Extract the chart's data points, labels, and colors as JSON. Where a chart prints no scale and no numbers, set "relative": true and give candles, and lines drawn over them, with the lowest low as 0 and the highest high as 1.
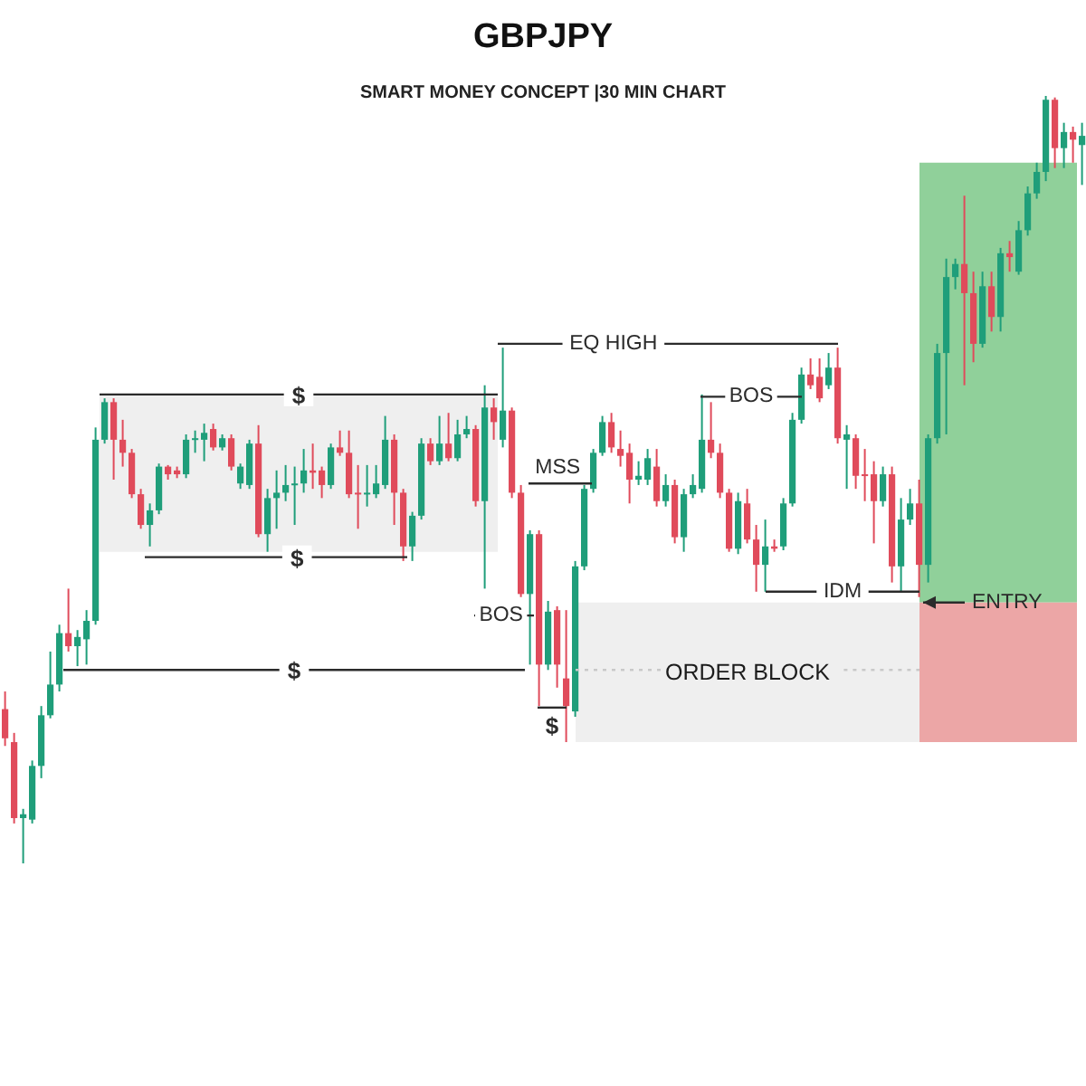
{
  "chart_data": {
    "type": "candlestick",
    "title": "GBPJPY",
    "subtitle": "SMART MONEY CONCEPT |30 MIN CHART",
    "relative": true,
    "categories": [
      null,
      null,
      null,
      null,
      null,
      null,
      null,
      null,
      null,
      null,
      null,
      null,
      null,
      null,
      null,
      null,
      null,
      null,
      null,
      null,
      null,
      null,
      null,
      null,
      null,
      null,
      null,
      null,
      null,
      null,
      null,
      null,
      null,
      null,
      null,
      null,
      null,
      null,
      null,
      null,
      null,
      null,
      null,
      null,
      null,
      null,
      null,
      null,
      null,
      null,
      null,
      null,
      null,
      null,
      null,
      null,
      null,
      null,
      null,
      null,
      null,
      null,
      null,
      null,
      null,
      null,
      null,
      null,
      null,
      null,
      null,
      null,
      null,
      null,
      null,
      null,
      null,
      null,
      null,
      null,
      null,
      null,
      null,
      null,
      null,
      null,
      null,
      null,
      null,
      null,
      null,
      null,
      null,
      null,
      null,
      null,
      null,
      null,
      null,
      null,
      null,
      null,
      null,
      null,
      null,
      null,
      null,
      null,
      null,
      null,
      null,
      null,
      null,
      null,
      null,
      null,
      null,
      null,
      null,
      null
    ],
    "ohlc": [
      [
        0.201,
        0.224,
        0.153,
        0.163
      ],
      [
        0.158,
        0.17,
        0.052,
        0.059
      ],
      [
        0.059,
        0.071,
        0,
        0.064
      ],
      [
        0.057,
        0.134,
        0.052,
        0.127
      ],
      [
        0.127,
        0.205,
        0.111,
        0.193
      ],
      [
        0.193,
        0.276,
        0.189,
        0.233
      ],
      [
        0.233,
        0.311,
        0.224,
        0.3
      ],
      [
        0.3,
        0.358,
        0.276,
        0.283
      ],
      [
        0.283,
        0.304,
        0.257,
        0.295
      ],
      [
        0.292,
        0.33,
        0.259,
        0.316
      ],
      [
        0.316,
        0.568,
        0.311,
        0.552
      ],
      [
        0.552,
        0.606,
        0.547,
        0.601
      ],
      [
        0.601,
        0.606,
        0.5,
        0.552
      ],
      [
        0.552,
        0.578,
        0.517,
        0.535
      ],
      [
        0.535,
        0.54,
        0.476,
        0.481
      ],
      [
        0.481,
        0.488,
        0.436,
        0.441
      ],
      [
        0.441,
        0.469,
        0.413,
        0.46
      ],
      [
        0.46,
        0.521,
        0.455,
        0.517
      ],
      [
        0.517,
        0.519,
        0.5,
        0.507
      ],
      [
        0.512,
        0.517,
        0.502,
        0.507
      ],
      [
        0.507,
        0.559,
        0.502,
        0.552
      ],
      [
        0.552,
        0.564,
        0.535,
        0.554
      ],
      [
        0.552,
        0.573,
        0.524,
        0.561
      ],
      [
        0.566,
        0.573,
        0.538,
        0.542
      ],
      [
        0.542,
        0.559,
        0.538,
        0.554
      ],
      [
        0.554,
        0.559,
        0.512,
        0.517
      ],
      [
        0.495,
        0.521,
        0.488,
        0.517
      ],
      [
        0.493,
        0.552,
        0.488,
        0.547
      ],
      [
        0.547,
        0.571,
        0.425,
        0.429
      ],
      [
        0.429,
        0.488,
        0.406,
        0.476
      ],
      [
        0.476,
        0.512,
        0.436,
        0.483
      ],
      [
        0.483,
        0.519,
        0.472,
        0.493
      ],
      [
        0.493,
        0.517,
        0.441,
        0.495
      ],
      [
        0.495,
        0.54,
        0.483,
        0.512
      ],
      [
        0.512,
        0.547,
        0.488,
        0.509
      ],
      [
        0.512,
        0.517,
        0.476,
        0.493
      ],
      [
        0.493,
        0.547,
        0.488,
        0.542
      ],
      [
        0.542,
        0.564,
        0.531,
        0.535
      ],
      [
        0.535,
        0.564,
        0.476,
        0.481
      ],
      [
        0.483,
        0.519,
        0.436,
        0.481
      ],
      [
        0.481,
        0.519,
        0.465,
        0.483
      ],
      [
        0.481,
        0.519,
        0.476,
        0.495
      ],
      [
        0.493,
        0.583,
        0.488,
        0.552
      ],
      [
        0.552,
        0.559,
        0.441,
        0.483
      ],
      [
        0.483,
        0.488,
        0.394,
        0.413
      ],
      [
        0.413,
        0.458,
        0.394,
        0.453
      ],
      [
        0.453,
        0.554,
        0.448,
        0.547
      ],
      [
        0.547,
        0.554,
        0.519,
        0.524
      ],
      [
        0.524,
        0.583,
        0.519,
        0.547
      ],
      [
        0.547,
        0.587,
        0.524,
        0.528
      ],
      [
        0.528,
        0.578,
        0.524,
        0.559
      ],
      [
        0.559,
        0.583,
        0.554,
        0.566
      ],
      [
        0.566,
        0.571,
        0.465,
        0.472
      ],
      [
        0.472,
        0.623,
        0.358,
        0.594
      ],
      [
        0.594,
        0.606,
        0.552,
        0.575
      ],
      [
        0.552,
        0.672,
        0.542,
        0.59
      ],
      [
        0.59,
        0.594,
        0.476,
        0.483
      ],
      [
        0.483,
        0.493,
        0.347,
        0.351
      ],
      [
        0.351,
        0.434,
        0.259,
        0.429
      ],
      [
        0.429,
        0.434,
        0.205,
        0.259
      ],
      [
        0.259,
        0.342,
        0.252,
        0.328
      ],
      [
        0.33,
        0.335,
        0.229,
        0.259
      ],
      [
        0.241,
        0.33,
        0.158,
        0.205
      ],
      [
        0.198,
        0.394,
        0.191,
        0.387
      ],
      [
        0.387,
        0.493,
        0.382,
        0.488
      ],
      [
        0.488,
        0.54,
        0.483,
        0.535
      ],
      [
        0.535,
        0.583,
        0.531,
        0.575
      ],
      [
        0.575,
        0.587,
        0.535,
        0.542
      ],
      [
        0.54,
        0.564,
        0.517,
        0.531
      ],
      [
        0.535,
        0.547,
        0.469,
        0.5
      ],
      [
        0.5,
        0.524,
        0.493,
        0.505
      ],
      [
        0.5,
        0.54,
        0.493,
        0.528
      ],
      [
        0.517,
        0.54,
        0.465,
        0.472
      ],
      [
        0.472,
        0.507,
        0.465,
        0.493
      ],
      [
        0.493,
        0.5,
        0.417,
        0.425
      ],
      [
        0.425,
        0.488,
        0.406,
        0.481
      ],
      [
        0.481,
        0.507,
        0.476,
        0.493
      ],
      [
        0.488,
        0.611,
        0.483,
        0.552
      ],
      [
        0.552,
        0.601,
        0.528,
        0.535
      ],
      [
        0.535,
        0.547,
        0.476,
        0.483
      ],
      [
        0.483,
        0.488,
        0.406,
        0.41
      ],
      [
        0.41,
        0.483,
        0.403,
        0.472
      ],
      [
        0.469,
        0.488,
        0.417,
        0.422
      ],
      [
        0.422,
        0.441,
        0.354,
        0.389
      ],
      [
        0.389,
        0.448,
        0.354,
        0.413
      ],
      [
        0.413,
        0.422,
        0.406,
        0.41
      ],
      [
        0.413,
        0.476,
        0.408,
        0.469
      ],
      [
        0.469,
        0.587,
        0.465,
        0.578
      ],
      [
        0.578,
        0.646,
        0.573,
        0.637
      ],
      [
        0.637,
        0.658,
        0.618,
        0.623
      ],
      [
        0.634,
        0.658,
        0.601,
        0.606
      ],
      [
        0.623,
        0.665,
        0.618,
        0.646
      ],
      [
        0.646,
        0.672,
        0.547,
        0.554
      ],
      [
        0.552,
        0.571,
        0.488,
        0.559
      ],
      [
        0.554,
        0.559,
        0.488,
        0.505
      ],
      [
        0.507,
        0.54,
        0.472,
        0.505
      ],
      [
        0.507,
        0.524,
        0.417,
        0.472
      ],
      [
        0.472,
        0.517,
        0.465,
        0.507
      ],
      [
        0.507,
        0.517,
        0.366,
        0.387
      ],
      [
        0.387,
        0.476,
        0.354,
        0.448
      ],
      [
        0.448,
        0.488,
        0.441,
        0.469
      ],
      [
        0.469,
        0.5,
        0.347,
        0.389
      ],
      [
        0.389,
        0.559,
        0.366,
        0.554
      ],
      [
        0.554,
        0.677,
        0.547,
        0.665
      ],
      [
        0.665,
        0.788,
        0.559,
        0.764
      ],
      [
        0.764,
        0.788,
        0.748,
        0.781
      ],
      [
        0.781,
        0.87,
        0.623,
        0.743
      ],
      [
        0.743,
        0.771,
        0.653,
        0.677
      ],
      [
        0.677,
        0.771,
        0.672,
        0.752
      ],
      [
        0.752,
        0.771,
        0.693,
        0.712
      ],
      [
        0.712,
        0.802,
        0.693,
        0.795
      ],
      [
        0.795,
        0.811,
        0.771,
        0.79
      ],
      [
        0.771,
        0.837,
        0.767,
        0.825
      ],
      [
        0.825,
        0.882,
        0.818,
        0.873
      ],
      [
        0.873,
        0.913,
        0.866,
        0.901
      ],
      [
        0.901,
        1,
        0.889,
        0.995
      ],
      [
        0.995,
        0.998,
        0.906,
        0.932
      ],
      [
        0.932,
        0.965,
        0.906,
        0.953
      ],
      [
        0.953,
        0.96,
        0.913,
        0.943
      ],
      [
        0.936,
        0.965,
        0.884,
        0.948
      ]
    ],
    "colors": [
      "#e04b5b",
      "#e04b5b",
      "#1f9e7a",
      "#1f9e7a",
      "#1f9e7a",
      "#1f9e7a",
      "#1f9e7a",
      "#e04b5b",
      "#1f9e7a",
      "#1f9e7a",
      "#1f9e7a",
      "#1f9e7a",
      "#e04b5b",
      "#e04b5b",
      "#e04b5b",
      "#e04b5b",
      "#1f9e7a",
      "#1f9e7a",
      "#e04b5b",
      "#e04b5b",
      "#1f9e7a",
      "#1f9e7a",
      "#1f9e7a",
      "#e04b5b",
      "#1f9e7a",
      "#e04b5b",
      "#1f9e7a",
      "#1f9e7a",
      "#e04b5b",
      "#1f9e7a",
      "#1f9e7a",
      "#1f9e7a",
      "#1f9e7a",
      "#1f9e7a",
      "#e04b5b",
      "#e04b5b",
      "#1f9e7a",
      "#e04b5b",
      "#e04b5b",
      "#e04b5b",
      "#1f9e7a",
      "#1f9e7a",
      "#1f9e7a",
      "#e04b5b",
      "#e04b5b",
      "#1f9e7a",
      "#1f9e7a",
      "#e04b5b",
      "#1f9e7a",
      "#e04b5b",
      "#1f9e7a",
      "#1f9e7a",
      "#e04b5b",
      "#1f9e7a",
      "#e04b5b",
      "#1f9e7a",
      "#e04b5b",
      "#e04b5b",
      "#1f9e7a",
      "#e04b5b",
      "#1f9e7a",
      "#e04b5b",
      "#e04b5b",
      "#1f9e7a",
      "#1f9e7a",
      "#1f9e7a",
      "#1f9e7a",
      "#e04b5b",
      "#e04b5b",
      "#e04b5b",
      "#1f9e7a",
      "#1f9e7a",
      "#e04b5b",
      "#1f9e7a",
      "#e04b5b",
      "#1f9e7a",
      "#1f9e7a",
      "#1f9e7a",
      "#e04b5b",
      "#e04b5b",
      "#e04b5b",
      "#1f9e7a",
      "#e04b5b",
      "#e04b5b",
      "#1f9e7a",
      "#e04b5b",
      "#1f9e7a",
      "#1f9e7a",
      "#1f9e7a",
      "#e04b5b",
      "#e04b5b",
      "#1f9e7a",
      "#e04b5b",
      "#1f9e7a",
      "#e04b5b",
      "#e04b5b",
      "#e04b5b",
      "#1f9e7a",
      "#e04b5b",
      "#1f9e7a",
      "#1f9e7a",
      "#e04b5b",
      "#1f9e7a",
      "#1f9e7a",
      "#1f9e7a",
      "#1f9e7a",
      "#e04b5b",
      "#e04b5b",
      "#1f9e7a",
      "#e04b5b",
      "#1f9e7a",
      "#e04b5b",
      "#1f9e7a",
      "#1f9e7a",
      "#1f9e7a",
      "#1f9e7a",
      "#e04b5b",
      "#1f9e7a",
      "#e04b5b",
      "#1f9e7a"
    ],
    "ref_lines": [
      {
        "axis": "y",
        "value": 0.611,
        "label": "$",
        "color": "#2b2b2b"
      },
      {
        "axis": "y",
        "value": 0.399,
        "label": "$",
        "color": "#2b2b2b"
      },
      {
        "axis": "y",
        "value": 0.252,
        "label": "$",
        "color": "#2b2b2b"
      },
      {
        "axis": "y",
        "value": 0.203,
        "label": "$",
        "color": "#2b2b2b"
      },
      {
        "axis": "y",
        "value": 0.323,
        "label": "BOS",
        "color": "#2b2b2b"
      },
      {
        "axis": "y",
        "value": 0.495,
        "label": "MSS",
        "color": "#2b2b2b"
      },
      {
        "axis": "y",
        "value": 0.677,
        "label": "EQ HIGH",
        "color": "#2b2b2b"
      },
      {
        "axis": "y",
        "value": 0.608,
        "label": "BOS",
        "color": "#2b2b2b"
      },
      {
        "axis": "y",
        "value": 0.354,
        "label": "IDM",
        "color": "#2b2b2b"
      },
      {
        "axis": "y",
        "value": 0.34,
        "label": "ENTRY",
        "color": "#2b2b2b"
      },
      {
        "axis": "y",
        "value": 0.252,
        "color": "#c9c9c9",
        "line_style": "dotted"
      }
    ],
    "bands": [
      {
        "axis": "y",
        "from": 0.406,
        "to": 0.611,
        "color": "#efefef"
      },
      {
        "axis": "y",
        "from": 0.158,
        "to": 0.34,
        "label": "ORDER BLOCK",
        "color": "#efefef"
      },
      {
        "axis": "y",
        "from": 0.34,
        "to": 0.913,
        "color": "#90d09a"
      },
      {
        "axis": "y",
        "from": 0.158,
        "to": 0.34,
        "color": "#eca6a6"
      }
    ]
  }
}
